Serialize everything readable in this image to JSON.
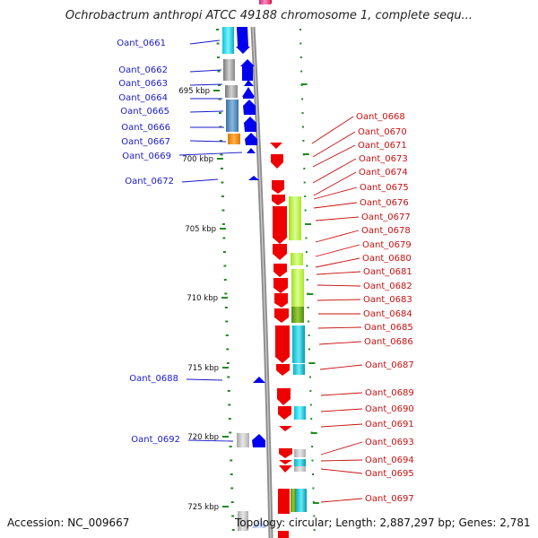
{
  "title": "Ochrobactrum anthropi ATCC 49188 chromosome 1, complete sequ...",
  "accession": "Accession: NC_009667",
  "topology": "Topology: circular; Length: 2,887,297 bp; Genes: 2,781",
  "kbp_labels": [
    "695 kbp",
    "700 kbp",
    "705 kbp",
    "710 kbp",
    "715 kbp",
    "720 kbp",
    "725 kbp"
  ],
  "left_genes": [
    "Oant_0661",
    "Oant_0662",
    "Oant_0663",
    "Oant_0664",
    "Oant_0665",
    "Oant_0666",
    "Oant_0667",
    "Oant_0669",
    "Oant_0672",
    "Oant_0688",
    "Oant_0692"
  ],
  "right_genes": [
    "Oant_0668",
    "Oant_0670",
    "Oant_0671",
    "Oant_0673",
    "Oant_0674",
    "Oant_0675",
    "Oant_0676",
    "Oant_0677",
    "Oant_0678",
    "Oant_0679",
    "Oant_0680",
    "Oant_0681",
    "Oant_0682",
    "Oant_0683",
    "Oant_0684",
    "Oant_0685",
    "Oant_0686",
    "Oant_0687",
    "Oant_0689",
    "Oant_0690",
    "Oant_0691",
    "Oant_0693",
    "Oant_0694",
    "Oant_0695",
    "Oant_0697"
  ],
  "colors": {
    "forward_strand": "#0000ee",
    "reverse_strand": "#ee0000",
    "backbone": "#8c8c8c",
    "ticks": "#228b22",
    "left_label": "#1a1ac8",
    "right_label": "#c81010",
    "cog_cyan": "#00d2e6",
    "cog_lime": "#b4ee3c",
    "cog_gray": "#8a8a8a",
    "cog_steel": "#4682b4",
    "cog_orange": "#f08c00",
    "cog_pink": "#ee3a8c"
  }
}
